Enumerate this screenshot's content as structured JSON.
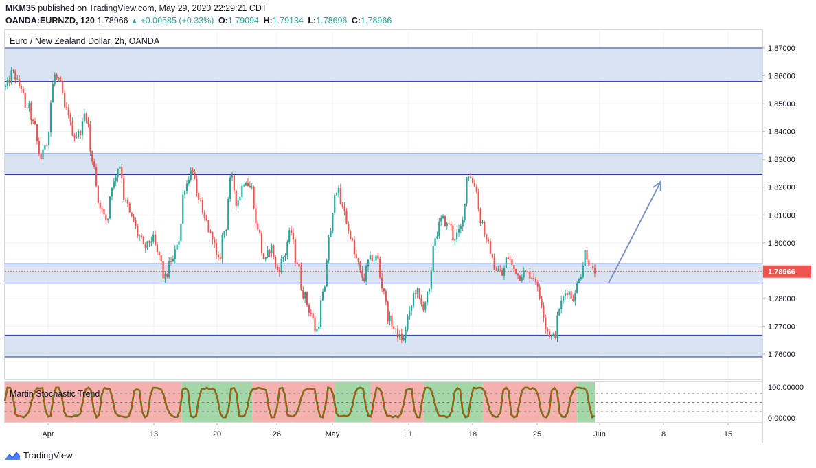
{
  "header": {
    "author": "MKM35",
    "published_text": "published on TradingView.com, May 29, 2020 22:29:21 CDT",
    "symbol": "OANDA:EURNZD, 120",
    "last": "1.78966",
    "change": "+0.00585 (+0.33%)",
    "open_label": "O:",
    "open": "1.79094",
    "high_label": "H:",
    "high": "1.79134",
    "low_label": "L:",
    "low": "1.78696",
    "close_label": "C:",
    "close": "1.78966"
  },
  "main_pane_title": "Euro / New Zealand Dollar, 2h, OANDA",
  "indicator_title": "Martin Stochastic Trend",
  "price_badge": "1.78966",
  "footer": {
    "brand": "TradingView"
  },
  "colors": {
    "up": "#26a69a",
    "down": "#ef5350",
    "zone_fill": "#d6e0f0",
    "zone_line": "#1c3c9c",
    "arrow": "#7e94c0",
    "osc_red": "#f4a8a5",
    "osc_green": "#9ad39e",
    "osc_line": "#d35400"
  },
  "chart_data": {
    "type": "candlestick",
    "y_ticks": [
      "1.87000",
      "1.86000",
      "1.85000",
      "1.84000",
      "1.83000",
      "1.82000",
      "1.81000",
      "1.80000",
      "1.79000",
      "1.78000",
      "1.77000",
      "1.76000"
    ],
    "x_ticks": [
      "Apr",
      "13",
      "20",
      "26",
      "May",
      "11",
      "18",
      "25",
      "Jun",
      "8",
      "15"
    ],
    "ylim": [
      1.7585,
      1.8715
    ],
    "close_path": [
      [
        1.856,
        1.8575
      ],
      [
        1.862,
        1.8595
      ],
      [
        1.8565,
        1.856
      ],
      [
        1.8475,
        1.85
      ],
      [
        1.8435,
        1.8415
      ],
      [
        1.8325,
        1.83
      ],
      [
        1.836,
        1.837
      ],
      [
        1.8545,
        1.8605
      ],
      [
        1.8575,
        1.8565
      ],
      [
        1.8475,
        1.848
      ],
      [
        1.8405,
        1.8385
      ],
      [
        1.839,
        1.8405
      ],
      [
        1.8465,
        1.8445
      ],
      [
        1.829,
        1.828
      ],
      [
        1.815,
        1.813
      ],
      [
        1.809,
        1.8075
      ],
      [
        1.8205,
        1.8215
      ],
      [
        1.827,
        1.828
      ],
      [
        1.815,
        1.814
      ],
      [
        1.809,
        1.808
      ],
      [
        1.803,
        1.802
      ],
      [
        1.798,
        1.799
      ],
      [
        1.801,
        1.8015
      ],
      [
        1.796,
        1.795
      ],
      [
        1.787,
        1.788
      ],
      [
        1.794,
        1.7935
      ],
      [
        1.8,
        1.802
      ],
      [
        1.819,
        1.821
      ],
      [
        1.825,
        1.827
      ],
      [
        1.8165,
        1.816
      ],
      [
        1.8085,
        1.808
      ],
      [
        1.803,
        1.8025
      ],
      [
        1.795,
        1.7925
      ],
      [
        1.804,
        1.805
      ],
      [
        1.822,
        1.823
      ],
      [
        1.8145,
        1.816
      ],
      [
        1.821,
        1.823
      ],
      [
        1.82,
        1.8195
      ],
      [
        1.8065,
        1.805
      ],
      [
        1.795,
        1.7935
      ],
      [
        1.7975,
        1.7985
      ],
      [
        1.791,
        1.79
      ],
      [
        1.794,
        1.796
      ],
      [
        1.803,
        1.804
      ],
      [
        1.794,
        1.7925
      ],
      [
        1.782,
        1.781
      ],
      [
        1.776,
        1.7745
      ],
      [
        1.7685,
        1.769
      ],
      [
        1.781,
        1.783
      ],
      [
        1.802,
        1.804
      ],
      [
        1.819,
        1.8195
      ],
      [
        1.8125,
        1.812
      ],
      [
        1.804,
        1.8025
      ],
      [
        1.7955,
        1.793
      ],
      [
        1.788,
        1.787
      ],
      [
        1.793,
        1.7945
      ],
      [
        1.794,
        1.7955
      ],
      [
        1.785,
        1.783
      ],
      [
        1.7735,
        1.772
      ],
      [
        1.769,
        1.767
      ],
      [
        1.766,
        1.765
      ],
      [
        1.773,
        1.775
      ],
      [
        1.782,
        1.783
      ],
      [
        1.778,
        1.777
      ],
      [
        1.781,
        1.783
      ],
      [
        1.801,
        1.803
      ],
      [
        1.808,
        1.8085
      ],
      [
        1.806,
        1.8075
      ],
      [
        1.801,
        1.803
      ],
      [
        1.804,
        1.808
      ],
      [
        1.8235,
        1.825
      ],
      [
        1.821,
        1.82
      ],
      [
        1.8085,
        1.807
      ],
      [
        1.8,
        1.799
      ],
      [
        1.7925,
        1.7905
      ],
      [
        1.79,
        1.788
      ],
      [
        1.794,
        1.795
      ],
      [
        1.791,
        1.79
      ],
      [
        1.7875,
        1.789
      ],
      [
        1.789,
        1.7885
      ],
      [
        1.788,
        1.787
      ],
      [
        1.781,
        1.778
      ],
      [
        1.77,
        1.7675
      ],
      [
        1.766,
        1.767
      ],
      [
        1.776,
        1.779
      ],
      [
        1.782,
        1.783
      ],
      [
        1.78,
        1.781
      ],
      [
        1.788,
        1.789
      ],
      [
        1.797,
        1.794
      ],
      [
        1.7897,
        1.7897
      ]
    ],
    "zones": [
      {
        "low": 1.858,
        "high": 1.87
      },
      {
        "low": 1.8245,
        "high": 1.832
      },
      {
        "low": 1.7855,
        "high": 1.7925
      },
      {
        "low": 1.759,
        "high": 1.7668
      }
    ],
    "current_price": 1.78966,
    "projection_arrow": {
      "from_price": 1.7855,
      "to_price": 1.822,
      "from_x_label": "Jun",
      "to_x_label": "8"
    },
    "oscillator": {
      "ticks": [
        "100.00000",
        "0.00000"
      ],
      "ylim": [
        -10,
        110
      ],
      "levels": [
        80,
        50,
        20
      ],
      "trend_segments": [
        {
          "trend": "bearish",
          "from": 0.0,
          "to": 0.3
        },
        {
          "trend": "bullish",
          "from": 0.3,
          "to": 0.42
        },
        {
          "trend": "bearish",
          "from": 0.42,
          "to": 0.56
        },
        {
          "trend": "bullish",
          "from": 0.56,
          "to": 0.62
        },
        {
          "trend": "bearish",
          "from": 0.62,
          "to": 0.71
        },
        {
          "trend": "bullish",
          "from": 0.71,
          "to": 0.81
        },
        {
          "trend": "bearish",
          "from": 0.81,
          "to": 0.97
        },
        {
          "trend": "bullish",
          "from": 0.97,
          "to": 1.0
        }
      ]
    }
  }
}
